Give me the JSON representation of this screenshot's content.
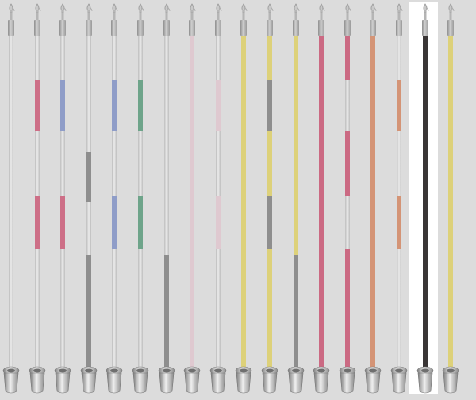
{
  "palette": {
    "pink": "#cd6f87",
    "blue": "#8f9dc8",
    "green": "#6ea48a",
    "gray": "#8e8e8e",
    "blush": "#dfc9d0",
    "yellow": "#ddd17a",
    "rose": "#cb6a83",
    "salmon": "#d49476",
    "dark": "#3a3636",
    "light": "#e2e2e2"
  },
  "poles": [
    {
      "name": "pole-1",
      "selected": false,
      "segments": []
    },
    {
      "name": "pole-2",
      "selected": false,
      "segments": [
        {
          "from": 0.133,
          "to": 0.288,
          "color": "pink"
        },
        {
          "from": 0.483,
          "to": 0.64,
          "color": "pink"
        }
      ]
    },
    {
      "name": "pole-3",
      "selected": false,
      "segments": [
        {
          "from": 0.133,
          "to": 0.288,
          "color": "blue"
        },
        {
          "from": 0.483,
          "to": 0.64,
          "color": "pink"
        }
      ]
    },
    {
      "name": "pole-4",
      "selected": false,
      "segments": [
        {
          "from": 0.35,
          "to": 0.5,
          "color": "gray"
        },
        {
          "from": 0.66,
          "to": 1.0,
          "color": "gray"
        }
      ]
    },
    {
      "name": "pole-5",
      "selected": false,
      "segments": [
        {
          "from": 0.133,
          "to": 0.288,
          "color": "blue"
        },
        {
          "from": 0.483,
          "to": 0.64,
          "color": "blue"
        }
      ]
    },
    {
      "name": "pole-6",
      "selected": false,
      "segments": [
        {
          "from": 0.133,
          "to": 0.288,
          "color": "green"
        },
        {
          "from": 0.483,
          "to": 0.64,
          "color": "green"
        }
      ]
    },
    {
      "name": "pole-7",
      "selected": false,
      "segments": [
        {
          "from": 0.66,
          "to": 1.0,
          "color": "gray"
        }
      ]
    },
    {
      "name": "pole-8",
      "selected": false,
      "segments": [
        {
          "from": 0.0,
          "to": 1.0,
          "color": "blush"
        }
      ]
    },
    {
      "name": "pole-9",
      "selected": false,
      "segments": [
        {
          "from": 0.133,
          "to": 0.288,
          "color": "blush"
        },
        {
          "from": 0.483,
          "to": 0.64,
          "color": "blush"
        }
      ]
    },
    {
      "name": "pole-10",
      "selected": false,
      "segments": [
        {
          "from": 0.0,
          "to": 1.0,
          "color": "yellow"
        }
      ]
    },
    {
      "name": "pole-11",
      "selected": false,
      "segments": [
        {
          "from": 0.0,
          "to": 0.133,
          "color": "yellow"
        },
        {
          "from": 0.133,
          "to": 0.288,
          "color": "gray"
        },
        {
          "from": 0.288,
          "to": 0.483,
          "color": "yellow"
        },
        {
          "from": 0.483,
          "to": 0.64,
          "color": "gray"
        },
        {
          "from": 0.64,
          "to": 1.0,
          "color": "yellow"
        }
      ]
    },
    {
      "name": "pole-12",
      "selected": false,
      "segments": [
        {
          "from": 0.0,
          "to": 0.66,
          "color": "yellow"
        },
        {
          "from": 0.66,
          "to": 1.0,
          "color": "gray"
        }
      ]
    },
    {
      "name": "pole-13",
      "selected": false,
      "segments": [
        {
          "from": 0.0,
          "to": 1.0,
          "color": "rose"
        }
      ]
    },
    {
      "name": "pole-14",
      "selected": false,
      "segments": [
        {
          "from": 0.0,
          "to": 0.133,
          "color": "rose"
        },
        {
          "from": 0.288,
          "to": 0.483,
          "color": "rose"
        },
        {
          "from": 0.64,
          "to": 1.0,
          "color": "rose"
        }
      ]
    },
    {
      "name": "pole-15",
      "selected": false,
      "segments": [
        {
          "from": 0.0,
          "to": 1.0,
          "color": "salmon"
        }
      ]
    },
    {
      "name": "pole-16",
      "selected": false,
      "segments": [
        {
          "from": 0.133,
          "to": 0.288,
          "color": "salmon"
        },
        {
          "from": 0.483,
          "to": 0.64,
          "color": "salmon"
        }
      ]
    },
    {
      "name": "pole-17",
      "selected": true,
      "segments": [
        {
          "from": 0.0,
          "to": 1.0,
          "color": "dark"
        }
      ]
    },
    {
      "name": "pole-18",
      "selected": false,
      "segments": [
        {
          "from": 0.0,
          "to": 1.0,
          "color": "yellow"
        }
      ]
    }
  ]
}
